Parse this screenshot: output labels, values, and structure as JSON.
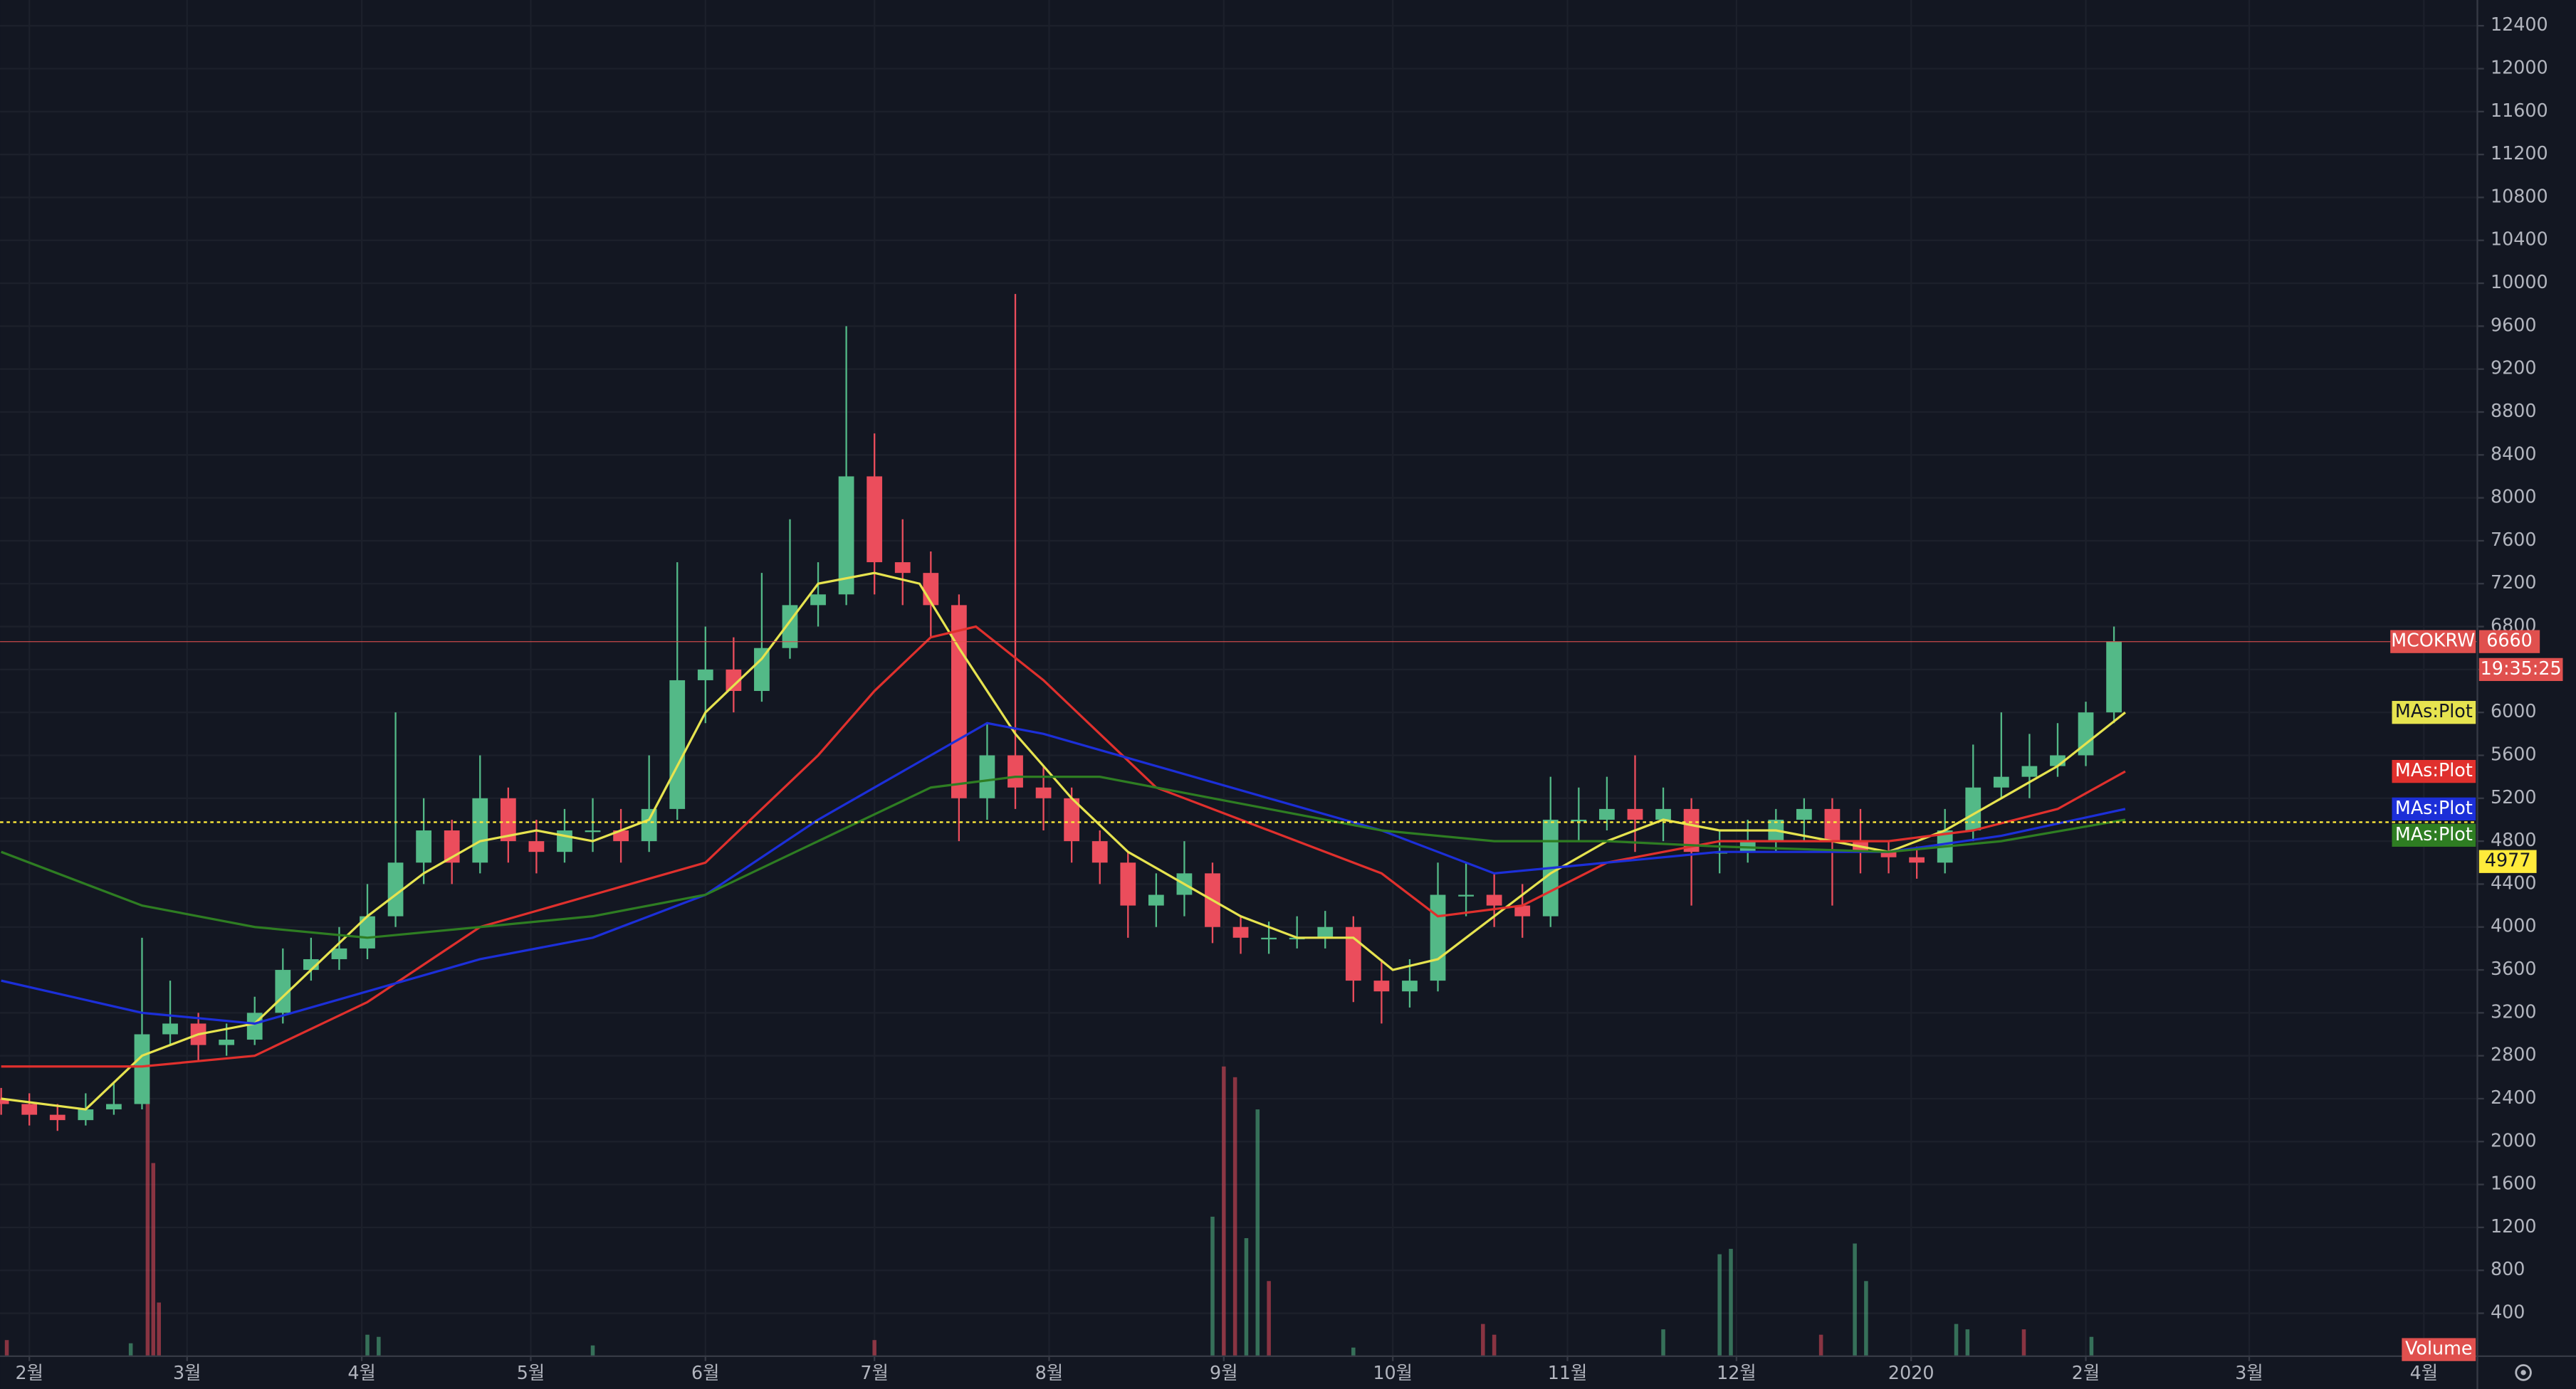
{
  "chart_data": {
    "type": "candlestick",
    "xlim": [
      -5.2,
      434.5
    ],
    "ylim": [
      0,
      12640
    ],
    "xticks": [
      {
        "value": 0,
        "label": "2월"
      },
      {
        "value": 28,
        "label": "3월"
      },
      {
        "value": 59,
        "label": "4월"
      },
      {
        "value": 89,
        "label": "5월"
      },
      {
        "value": 120,
        "label": "6월"
      },
      {
        "value": 150,
        "label": "7월"
      },
      {
        "value": 181,
        "label": "8월"
      },
      {
        "value": 212,
        "label": "9월"
      },
      {
        "value": 242,
        "label": "10월"
      },
      {
        "value": 273,
        "label": "11월"
      },
      {
        "value": 303,
        "label": "12월"
      },
      {
        "value": 334,
        "label": "2020"
      },
      {
        "value": 365,
        "label": "2월"
      },
      {
        "value": 394,
        "label": "3월"
      },
      {
        "value": 425,
        "label": "4월"
      }
    ],
    "yticks": [
      400,
      800,
      1200,
      1600,
      2000,
      2400,
      2800,
      3200,
      3600,
      4000,
      4400,
      4800,
      5200,
      5600,
      6000,
      6400,
      6800,
      7200,
      7600,
      8000,
      8400,
      8800,
      9200,
      9600,
      10000,
      10400,
      10800,
      11200,
      11600,
      12000,
      12400
    ],
    "grid": true,
    "up_color": "#53b987",
    "down_color": "#eb4d5c",
    "candles": {
      "x": [
        -5,
        0,
        5,
        10,
        15,
        20,
        25,
        30,
        35,
        40,
        45,
        50,
        55,
        60,
        65,
        70,
        75,
        80,
        85,
        90,
        95,
        100,
        105,
        110,
        115,
        120,
        125,
        130,
        135,
        140,
        145,
        150,
        155,
        160,
        165,
        170,
        175,
        180,
        185,
        190,
        195,
        200,
        205,
        210,
        215,
        220,
        225,
        230,
        235,
        240,
        245,
        250,
        255,
        260,
        265,
        270,
        275,
        280,
        285,
        290,
        295,
        300,
        305,
        310,
        315,
        320,
        325,
        330,
        335,
        340,
        345,
        350,
        355,
        360,
        365,
        370
      ],
      "open": [
        2400,
        2350,
        2250,
        2200,
        2300,
        2350,
        3000,
        3100,
        2900,
        2950,
        3200,
        3600,
        3700,
        3800,
        4100,
        4600,
        4900,
        4600,
        5200,
        4800,
        4700,
        4900,
        4900,
        4800,
        5100,
        6300,
        6400,
        6200,
        6600,
        7000,
        7100,
        8200,
        7400,
        7300,
        7000,
        5200,
        5600,
        5300,
        5200,
        4800,
        4600,
        4200,
        4300,
        4500,
        4000,
        3900,
        3900,
        3900,
        4000,
        3500,
        3400,
        3500,
        4300,
        4300,
        4200,
        4100,
        5000,
        5000,
        5100,
        5000,
        5100,
        4700,
        4700,
        4800,
        5000,
        5100,
        4800,
        4700,
        4650,
        4600,
        4900,
        5300,
        5400,
        5500,
        5600,
        6000
      ],
      "high": [
        2500,
        2450,
        2350,
        2450,
        2550,
        3900,
        3500,
        3200,
        3100,
        3350,
        3800,
        3900,
        4000,
        4400,
        6000,
        5200,
        5000,
        5600,
        5300,
        5000,
        5100,
        5200,
        5100,
        5600,
        7400,
        6800,
        6700,
        7300,
        7800,
        7400,
        9600,
        8600,
        7800,
        7500,
        7100,
        5900,
        9900,
        5500,
        5300,
        4900,
        4700,
        4500,
        4800,
        4600,
        4100,
        4050,
        4100,
        4150,
        4100,
        3700,
        3700,
        4600,
        4600,
        4500,
        4400,
        5400,
        5300,
        5400,
        5600,
        5300,
        5200,
        4900,
        5000,
        5100,
        5200,
        5200,
        5100,
        4800,
        4750,
        5100,
        5700,
        6000,
        5800,
        5900,
        6100,
        6800
      ],
      "low": [
        2250,
        2150,
        2100,
        2150,
        2250,
        2300,
        2900,
        2750,
        2800,
        2900,
        3100,
        3500,
        3600,
        3700,
        4000,
        4400,
        4400,
        4500,
        4600,
        4500,
        4600,
        4700,
        4600,
        4700,
        5000,
        5900,
        6000,
        6100,
        6500,
        6800,
        7000,
        7100,
        7000,
        6700,
        4800,
        5000,
        5100,
        4900,
        4600,
        4400,
        3900,
        4000,
        4100,
        3850,
        3750,
        3750,
        3800,
        3800,
        3300,
        3100,
        3250,
        3400,
        4100,
        4000,
        3900,
        4000,
        4800,
        4900,
        4700,
        4800,
        4200,
        4500,
        4600,
        4700,
        4800,
        4200,
        4500,
        4500,
        4450,
        4500,
        4800,
        5200,
        5200,
        5400,
        5500,
        5900
      ],
      "close": [
        2350,
        2250,
        2200,
        2300,
        2350,
        3000,
        3100,
        2900,
        2950,
        3200,
        3600,
        3700,
        3800,
        4100,
        4600,
        4900,
        4600,
        5200,
        4800,
        4700,
        4900,
        4900,
        4800,
        5100,
        6300,
        6400,
        6200,
        6600,
        7000,
        7100,
        8200,
        7400,
        7300,
        7000,
        5200,
        5600,
        5300,
        5200,
        4800,
        4600,
        4200,
        4300,
        4500,
        4000,
        3900,
        3900,
        3900,
        4000,
        3500,
        3400,
        3500,
        4300,
        4300,
        4200,
        4100,
        5000,
        5000,
        5100,
        5000,
        5100,
        4700,
        4700,
        4800,
        5000,
        5100,
        4800,
        4700,
        4650,
        4600,
        4900,
        5300,
        5400,
        5500,
        5600,
        6000,
        6660
      ]
    },
    "series": [
      {
        "name": "MAs:Plot",
        "color": "#e6e34f",
        "x": [
          -5,
          10,
          20,
          30,
          40,
          50,
          60,
          70,
          80,
          90,
          100,
          110,
          120,
          130,
          140,
          150,
          158,
          165,
          175,
          185,
          195,
          205,
          215,
          225,
          235,
          242,
          250,
          260,
          270,
          280,
          290,
          300,
          310,
          320,
          330,
          340,
          350,
          360,
          372
        ],
        "values": [
          2400,
          2300,
          2800,
          3000,
          3100,
          3600,
          4100,
          4500,
          4800,
          4900,
          4800,
          5000,
          6000,
          6500,
          7200,
          7300,
          7200,
          6600,
          5800,
          5200,
          4700,
          4400,
          4100,
          3900,
          3900,
          3600,
          3700,
          4100,
          4500,
          4800,
          5000,
          4900,
          4900,
          4800,
          4700,
          4900,
          5200,
          5500,
          6000
        ]
      },
      {
        "name": "MAs:Plot",
        "color": "#e0302d",
        "x": [
          -5,
          20,
          40,
          60,
          80,
          100,
          120,
          140,
          150,
          160,
          168,
          180,
          190,
          200,
          220,
          240,
          250,
          265,
          280,
          300,
          330,
          345,
          360,
          372
        ],
        "values": [
          2700,
          2700,
          2800,
          3300,
          4000,
          4300,
          4600,
          5600,
          6200,
          6700,
          6800,
          6300,
          5800,
          5300,
          4900,
          4500,
          4100,
          4200,
          4600,
          4800,
          4800,
          4900,
          5100,
          5450
        ]
      },
      {
        "name": "MAs:Plot",
        "color": "#1c2fd8",
        "x": [
          -5,
          20,
          40,
          60,
          80,
          100,
          120,
          140,
          160,
          170,
          180,
          200,
          220,
          240,
          260,
          280,
          300,
          330,
          350,
          372
        ],
        "values": [
          3500,
          3200,
          3100,
          3400,
          3700,
          3900,
          4300,
          5000,
          5600,
          5900,
          5800,
          5500,
          5200,
          4900,
          4500,
          4600,
          4700,
          4700,
          4850,
          5100
        ]
      },
      {
        "name": "MAs:Plot",
        "color": "#2e7d22",
        "x": [
          -5,
          20,
          40,
          60,
          80,
          100,
          120,
          140,
          160,
          175,
          190,
          210,
          240,
          260,
          280,
          300,
          330,
          350,
          372
        ],
        "values": [
          4700,
          4200,
          4000,
          3900,
          4000,
          4100,
          4300,
          4800,
          5300,
          5400,
          5400,
          5200,
          4900,
          4800,
          4800,
          4750,
          4700,
          4800,
          5000
        ]
      }
    ],
    "volume": {
      "name": "Volume",
      "x": [
        -4,
        18,
        21,
        22,
        23,
        60,
        62,
        100,
        150,
        210,
        212,
        214,
        216,
        218,
        220,
        235,
        258,
        260,
        290,
        300,
        302,
        318,
        324,
        326,
        342,
        344,
        354,
        366
      ],
      "values": [
        150,
        120,
        2800,
        1800,
        500,
        200,
        180,
        100,
        150,
        1300,
        2700,
        2600,
        1100,
        2300,
        700,
        80,
        300,
        200,
        250,
        950,
        1000,
        200,
        1050,
        700,
        300,
        250,
        250,
        180
      ],
      "colors": [
        "#eb4d5c",
        "#53b987",
        "#eb4d5c",
        "#eb4d5c",
        "#eb4d5c",
        "#53b987",
        "#53b987",
        "#53b987",
        "#eb4d5c",
        "#53b987",
        "#eb4d5c",
        "#eb4d5c",
        "#53b987",
        "#53b987",
        "#eb4d5c",
        "#53b987",
        "#eb4d5c",
        "#eb4d5c",
        "#53b987",
        "#53b987",
        "#53b987",
        "#eb4d5c",
        "#53b987",
        "#53b987",
        "#53b987",
        "#53b987",
        "#eb4d5c",
        "#53b987"
      ]
    },
    "hline": {
      "value": 4977,
      "color": "#ffeb3b"
    },
    "last_price": {
      "symbol": "MCOKRW",
      "value": 6660,
      "countdown": "19:35:25",
      "color": "#e0504e"
    }
  }
}
